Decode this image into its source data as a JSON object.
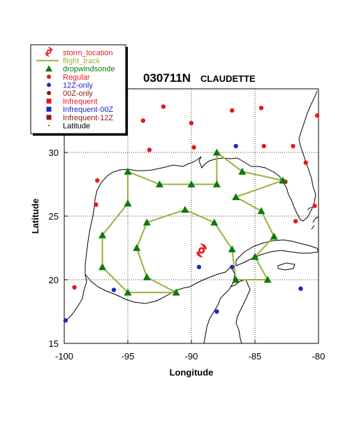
{
  "title": {
    "id": "030711N",
    "name": "CLAUDETTE"
  },
  "axes": {
    "xlabel": "Longitude",
    "ylabel": "Latitude",
    "xlim": [
      -100,
      -80
    ],
    "ylim": [
      15,
      33.8
    ],
    "xticks": [
      "-100",
      "-95",
      "-90",
      "-85",
      "-80"
    ],
    "yticks": [
      "15",
      "20",
      "25",
      "30"
    ],
    "grid": "dotted"
  },
  "legend": {
    "placement": "top-left",
    "items": [
      {
        "label": "storm_location",
        "symbol": "hurricane",
        "color": "#e8161a"
      },
      {
        "label": "flight_track",
        "symbol": "line",
        "color": "#9ab03a"
      },
      {
        "label": "dropwindsonde",
        "symbol": "triangle",
        "color": "#0b7a0b"
      },
      {
        "label": "Regular",
        "symbol": "circle",
        "color": "#e8161a"
      },
      {
        "label": "12Z-only",
        "symbol": "circle",
        "color": "#1a2bbf"
      },
      {
        "label": "00Z-only",
        "symbol": "circle",
        "color": "#8b1a10"
      },
      {
        "label": "Infrequent",
        "symbol": "square",
        "color": "#e8161a"
      },
      {
        "label": "Infrequent-00Z",
        "symbol": "square",
        "color": "#1a2bbf"
      },
      {
        "label": "Infrequent-12Z",
        "symbol": "square",
        "color": "#8b1a10"
      },
      {
        "label": "Latitude",
        "symbol": "dot",
        "color": "#000000"
      }
    ]
  },
  "chart_data": {
    "type": "scatter",
    "storm_location": [
      -89.2,
      22.3
    ],
    "flight_track": [
      [
        -91.2,
        19.0
      ],
      [
        -95.0,
        19.0
      ],
      [
        -97.0,
        21.0
      ],
      [
        -97.0,
        23.5
      ],
      [
        -95.0,
        26.0
      ],
      [
        -95.0,
        28.5
      ],
      [
        -92.5,
        27.5
      ],
      [
        -90.0,
        27.5
      ],
      [
        -88.0,
        27.5
      ],
      [
        -88.0,
        30.0
      ],
      [
        -86.0,
        28.5
      ],
      [
        -82.8,
        27.8
      ],
      [
        -86.5,
        26.5
      ],
      [
        -84.5,
        25.4
      ],
      [
        -83.5,
        23.4
      ],
      [
        -85.0,
        21.8
      ],
      [
        -84.0,
        20.0
      ],
      [
        -86.5,
        20.0
      ],
      [
        -86.8,
        22.4
      ],
      [
        -88.2,
        24.5
      ],
      [
        -90.5,
        25.5
      ],
      [
        -93.5,
        24.5
      ],
      [
        -94.3,
        22.5
      ],
      [
        -93.5,
        20.2
      ],
      [
        -91.2,
        19.0
      ]
    ],
    "dropwindsonde": [
      [
        -91.2,
        19.0
      ],
      [
        -95.0,
        19.0
      ],
      [
        -97.0,
        21.0
      ],
      [
        -97.0,
        23.5
      ],
      [
        -95.0,
        26.0
      ],
      [
        -95.0,
        28.5
      ],
      [
        -92.5,
        27.5
      ],
      [
        -90.0,
        27.5
      ],
      [
        -88.0,
        27.5
      ],
      [
        -88.0,
        30.0
      ],
      [
        -86.0,
        28.5
      ],
      [
        -82.8,
        27.8
      ],
      [
        -86.5,
        26.5
      ],
      [
        -84.5,
        25.4
      ],
      [
        -83.5,
        23.4
      ],
      [
        -85.0,
        21.8
      ],
      [
        -84.0,
        20.0
      ],
      [
        -86.5,
        20.0
      ],
      [
        -86.8,
        22.4
      ],
      [
        -88.2,
        24.5
      ],
      [
        -90.5,
        25.5
      ],
      [
        -93.5,
        24.5
      ],
      [
        -94.3,
        22.5
      ],
      [
        -93.5,
        20.2
      ]
    ],
    "regular": [
      [
        -92.2,
        33.6
      ],
      [
        -86.8,
        33.3
      ],
      [
        -84.5,
        33.5
      ],
      [
        -80.1,
        32.9
      ],
      [
        -93.8,
        32.5
      ],
      [
        -90.0,
        32.3
      ],
      [
        -93.3,
        30.2
      ],
      [
        -89.8,
        30.4
      ],
      [
        -84.3,
        30.5
      ],
      [
        -82.0,
        30.5
      ],
      [
        -81.0,
        29.2
      ],
      [
        -97.4,
        27.8
      ],
      [
        -82.6,
        27.7
      ],
      [
        -97.5,
        25.9
      ],
      [
        -80.3,
        25.8
      ],
      [
        -81.8,
        24.6
      ],
      [
        -99.2,
        19.4
      ]
    ],
    "twelve_z_only": [
      [
        -86.5,
        30.5
      ],
      [
        -96.1,
        19.2
      ],
      [
        -89.4,
        21.0
      ],
      [
        -86.8,
        21.0
      ],
      [
        -88.0,
        17.5
      ],
      [
        -81.4,
        19.3
      ],
      [
        -99.9,
        16.8
      ]
    ]
  }
}
